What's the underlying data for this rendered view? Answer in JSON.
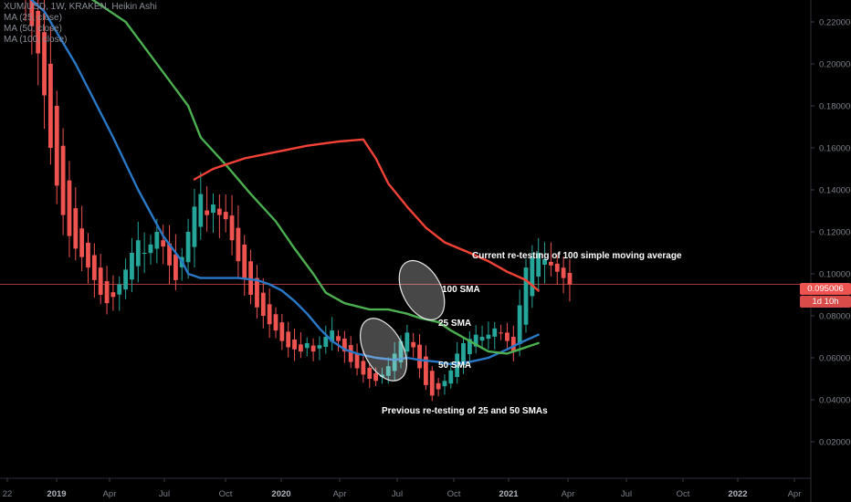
{
  "legend": {
    "symbol": "XUM/USD, 1W, KRAKEN, Heikin Ashi",
    "ma1": "MA (25, close)",
    "ma2": "MA (50, close)",
    "ma3": "MA (100, close)"
  },
  "price_label": {
    "value": "0.095006",
    "timer": "1d 10h"
  },
  "colors": {
    "background": "#000000",
    "bull": "#26a69a",
    "bear": "#ef5350",
    "sma25": "#2979c9",
    "sma50": "#4caf50",
    "sma100": "#f44336",
    "price_line": "#ef5350",
    "axis_text": "#7b8089"
  },
  "chart_data": {
    "type": "candlestick",
    "title": "XUM/USD, 1W, KRAKEN, Heikin Ashi",
    "ylim": [
      0.0,
      0.232
    ],
    "y_ticks": [
      "0.020000",
      "0.040000",
      "0.060000",
      "0.080000",
      "0.100000",
      "0.120000",
      "0.140000",
      "0.160000",
      "0.180000",
      "0.200000",
      "0.220000"
    ],
    "x_ticks": [
      "22",
      "2019",
      "Apr",
      "Jul",
      "Oct",
      "2020",
      "Apr",
      "Jul",
      "Oct",
      "2021",
      "Apr",
      "Jul",
      "Oct",
      "2022",
      "Apr"
    ],
    "current_price": 0.095006,
    "annotations": [
      {
        "text": "Current re-testing of 100 simple moving average"
      },
      {
        "text": "100 SMA"
      },
      {
        "text": "25 SMA"
      },
      {
        "text": "50 SMA"
      },
      {
        "text": "Previous re-testing of 25 and 50 SMAs"
      }
    ],
    "series": [
      {
        "name": "MA (25, close)",
        "kind": "line",
        "values": [
          [
            0,
            0.233
          ],
          [
            3,
            0.225
          ],
          [
            8,
            0.2
          ],
          [
            14,
            0.165
          ],
          [
            18,
            0.14
          ],
          [
            22,
            0.118
          ],
          [
            25,
            0.106
          ],
          [
            26,
            0.1
          ],
          [
            28,
            0.098
          ],
          [
            31,
            0.098
          ],
          [
            34,
            0.098
          ],
          [
            37,
            0.097
          ],
          [
            39,
            0.095
          ],
          [
            41,
            0.092
          ],
          [
            43,
            0.087
          ],
          [
            45,
            0.081
          ],
          [
            47,
            0.074
          ],
          [
            49,
            0.068
          ],
          [
            51,
            0.064
          ],
          [
            53,
            0.062
          ],
          [
            56,
            0.06
          ],
          [
            59,
            0.059
          ],
          [
            61,
            0.06
          ],
          [
            63,
            0.059
          ],
          [
            66,
            0.058
          ],
          [
            68,
            0.057
          ],
          [
            71,
            0.058
          ],
          [
            74,
            0.06
          ],
          [
            77,
            0.064
          ],
          [
            79,
            0.067
          ],
          [
            82,
            0.071
          ]
        ]
      },
      {
        "name": "MA (50, close)",
        "kind": "line",
        "values": [
          [
            10,
            0.232
          ],
          [
            16,
            0.22
          ],
          [
            22,
            0.196
          ],
          [
            26,
            0.18
          ],
          [
            28,
            0.165
          ],
          [
            32,
            0.152
          ],
          [
            36,
            0.138
          ],
          [
            40,
            0.125
          ],
          [
            43,
            0.112
          ],
          [
            46,
            0.1
          ],
          [
            48,
            0.091
          ],
          [
            51,
            0.086
          ],
          [
            55,
            0.083
          ],
          [
            58,
            0.083
          ],
          [
            61,
            0.081
          ],
          [
            63,
            0.079
          ],
          [
            66,
            0.077
          ],
          [
            68,
            0.073
          ],
          [
            71,
            0.068
          ],
          [
            74,
            0.063
          ],
          [
            77,
            0.062
          ],
          [
            79,
            0.064
          ],
          [
            82,
            0.067
          ]
        ]
      },
      {
        "name": "MA (100, close)",
        "kind": "line",
        "values": [
          [
            27,
            0.145
          ],
          [
            30,
            0.15
          ],
          [
            35,
            0.155
          ],
          [
            40,
            0.158
          ],
          [
            45,
            0.161
          ],
          [
            50,
            0.163
          ],
          [
            54,
            0.164
          ],
          [
            56,
            0.155
          ],
          [
            58,
            0.143
          ],
          [
            61,
            0.132
          ],
          [
            64,
            0.122
          ],
          [
            67,
            0.115
          ],
          [
            71,
            0.11
          ],
          [
            74,
            0.106
          ],
          [
            77,
            0.101
          ],
          [
            80,
            0.097
          ],
          [
            82,
            0.092
          ]
        ]
      }
    ]
  }
}
